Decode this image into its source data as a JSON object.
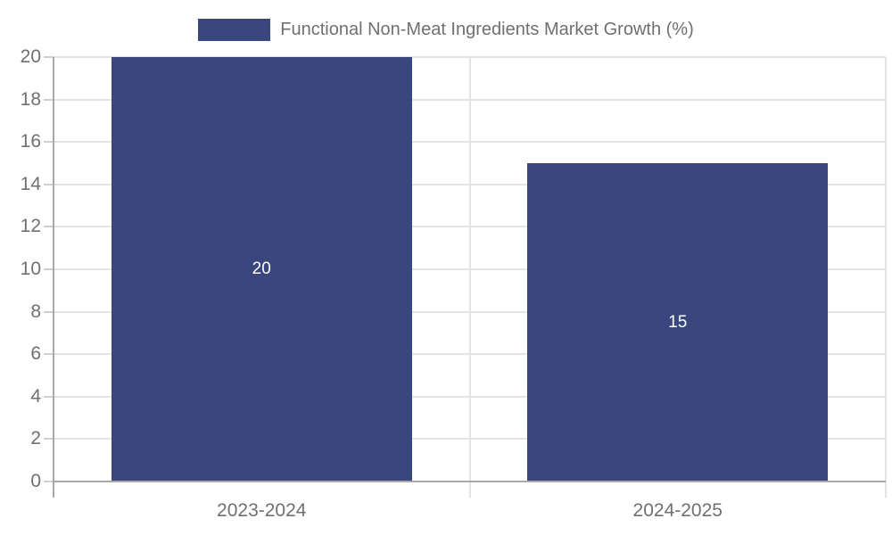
{
  "chart_data": {
    "type": "bar",
    "title": "Functional Non-Meat Ingredients Market Growth (%)",
    "categories": [
      "2023-2024",
      "2024-2025"
    ],
    "values": [
      20,
      15
    ],
    "data_labels": [
      "20",
      "15"
    ],
    "xlabel": "",
    "ylabel": "",
    "ylim": [
      0,
      20
    ],
    "yticks": [
      0,
      2,
      4,
      6,
      8,
      10,
      12,
      14,
      16,
      18,
      20
    ],
    "grid": true,
    "legend_position": "top-center",
    "colors": {
      "bar": "#3A477E",
      "data_label": "#FFFFFF",
      "axis_text": "#707070",
      "axis_line": "#A8A8A8",
      "tick_mark": "#CFCFCF",
      "gridline": "#E4E4E4",
      "background": "#FFFFFF"
    }
  }
}
